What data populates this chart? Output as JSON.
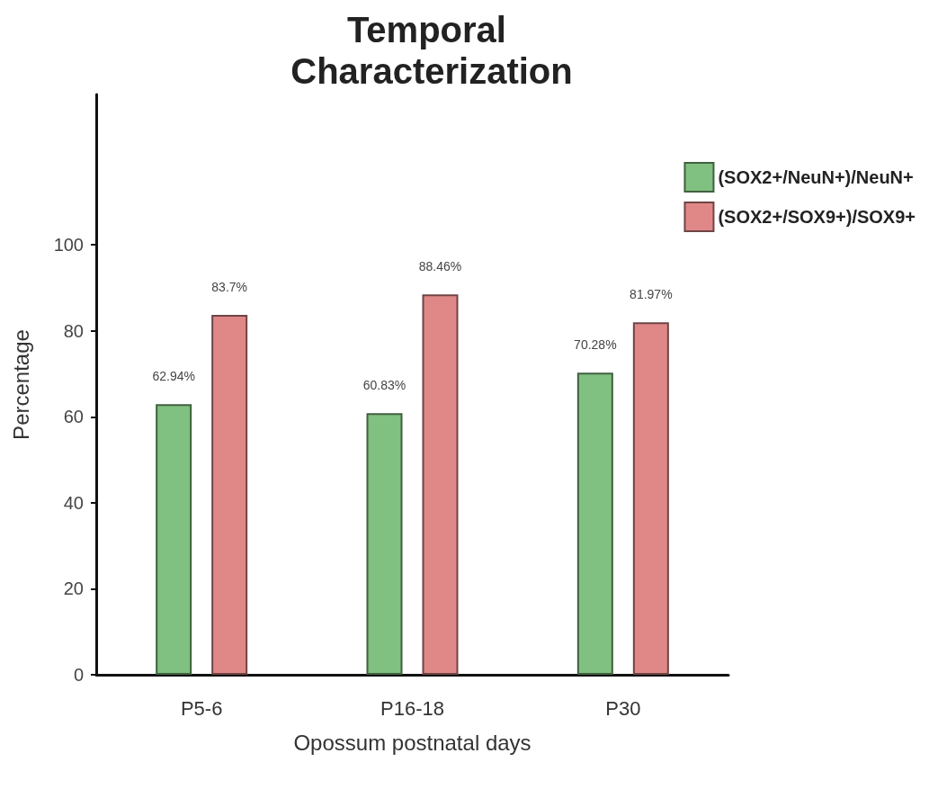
{
  "chart_data": {
    "type": "bar",
    "title": "Temporal Characterization",
    "xlabel": "Opossum postnatal days",
    "ylabel": "Percentage",
    "categories": [
      "P5-6",
      "P16-18",
      "P30"
    ],
    "series": [
      {
        "name": "(SOX2+/NeuN+)/NeuN+",
        "color": "#80c080",
        "values": [
          62.94,
          60.83,
          70.28
        ],
        "value_labels": [
          "62.94%",
          "60.83%",
          "70.28%"
        ]
      },
      {
        "name": "(SOX2+/SOX9+)/SOX9+",
        "color": "#e08888",
        "values": [
          83.7,
          88.46,
          81.97
        ],
        "value_labels": [
          "83.7%",
          "88.46%",
          "81.97%"
        ]
      }
    ],
    "ylim": [
      0,
      135
    ],
    "yticks": [
      0,
      20,
      40,
      60,
      80,
      100
    ],
    "grid": false,
    "legend": "top right"
  }
}
